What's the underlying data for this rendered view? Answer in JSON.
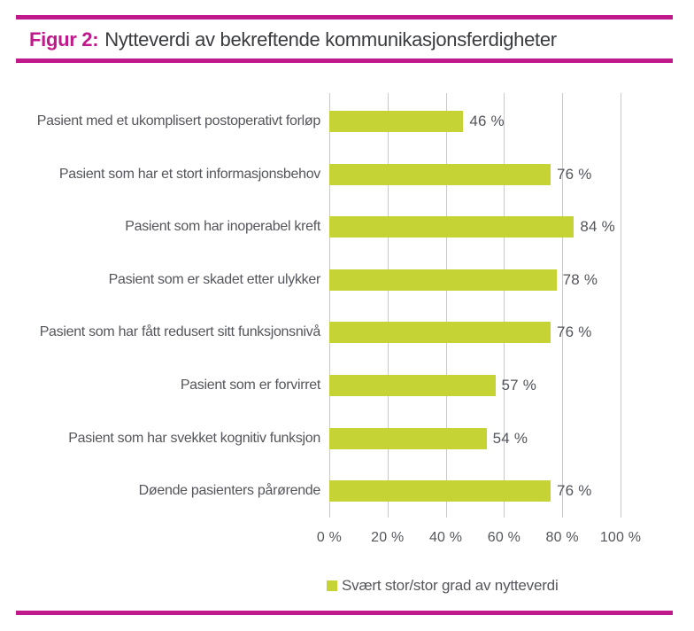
{
  "header": {
    "figure_label": "Figur 2:",
    "title": "Nytteverdi av bekreftende kommunikasjonsferdigheter"
  },
  "colors": {
    "magenta": "#c0198b",
    "bar_green": "#c5d335",
    "gridline": "#c9c9c9",
    "text_dark": "#3a3b3f",
    "text_gray": "#55565c"
  },
  "chart_data": {
    "type": "bar",
    "orientation": "horizontal",
    "categories": [
      "Pasient med et ukomplisert postoperativt forløp",
      "Pasient som har et stort informasjonsbehov",
      "Pasient som har inoperabel kreft",
      "Pasient som er skadet etter ulykker",
      "Pasient som har fått redusert sitt funksjonsnivå",
      "Pasient som er forvirret",
      "Pasient som har svekket kognitiv funksjon",
      "Døende pasienters pårørende"
    ],
    "values": [
      46,
      76,
      84,
      78,
      76,
      57,
      54,
      76
    ],
    "value_labels": [
      "46 %",
      "76 %",
      "84 %",
      "78 %",
      "76 %",
      "57 %",
      "54 %",
      "76 %"
    ],
    "x_ticks": [
      "0 %",
      "20 %",
      "40 %",
      "60 %",
      "80 %",
      "100 %"
    ],
    "xlim": [
      0,
      100
    ],
    "grid": "vertical",
    "series_name": "Svært stor/stor grad av nytteverdi",
    "legend_position": "bottom",
    "title": "Nytteverdi av bekreftende kommunikasjonsferdigheter"
  },
  "legend": {
    "label": "Svært stor/stor grad av nytteverdi"
  }
}
